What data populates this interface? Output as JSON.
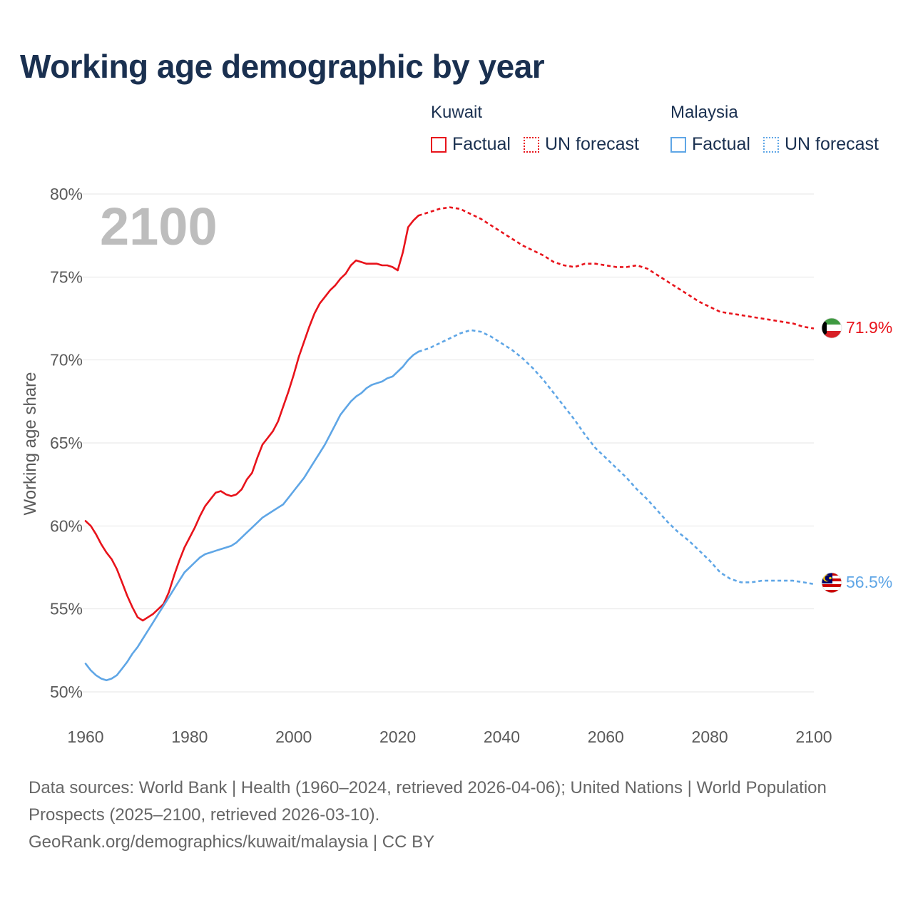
{
  "title": "Working age demographic by year",
  "legend": {
    "groups": [
      {
        "country": "Kuwait",
        "color": "#e8131b",
        "factual_label": "Factual",
        "forecast_label": "UN forecast"
      },
      {
        "country": "Malaysia",
        "color": "#5fa6e6",
        "factual_label": "Factual",
        "forecast_label": "UN forecast"
      }
    ]
  },
  "year_watermark": "2100",
  "chart_data": {
    "type": "line",
    "title": "Working age demographic by year",
    "xlabel": "",
    "ylabel": "Working age share",
    "xlim": [
      1960,
      2100
    ],
    "ylim": [
      50,
      80
    ],
    "x_ticks": [
      1960,
      1980,
      2000,
      2020,
      2040,
      2060,
      2080,
      2100
    ],
    "y_ticks": [
      50,
      55,
      60,
      65,
      70,
      75,
      80
    ],
    "y_tick_labels": [
      "50%",
      "55%",
      "60%",
      "65%",
      "70%",
      "75%",
      "80%"
    ],
    "grid": true,
    "series": [
      {
        "name": "Kuwait",
        "color": "#e8131b",
        "end_label": "71.9%",
        "factual_range": "1960–2024",
        "forecast_range": "2024–2100",
        "factual": [
          [
            1960,
            60.3
          ],
          [
            1961,
            60.0
          ],
          [
            1962,
            59.5
          ],
          [
            1963,
            58.9
          ],
          [
            1964,
            58.4
          ],
          [
            1965,
            58.0
          ],
          [
            1966,
            57.4
          ],
          [
            1967,
            56.6
          ],
          [
            1968,
            55.8
          ],
          [
            1969,
            55.1
          ],
          [
            1970,
            54.5
          ],
          [
            1971,
            54.3
          ],
          [
            1972,
            54.5
          ],
          [
            1973,
            54.7
          ],
          [
            1974,
            55.0
          ],
          [
            1975,
            55.3
          ],
          [
            1976,
            56.0
          ],
          [
            1977,
            57.0
          ],
          [
            1978,
            57.9
          ],
          [
            1979,
            58.7
          ],
          [
            1980,
            59.3
          ],
          [
            1981,
            59.9
          ],
          [
            1982,
            60.6
          ],
          [
            1983,
            61.2
          ],
          [
            1984,
            61.6
          ],
          [
            1985,
            62.0
          ],
          [
            1986,
            62.1
          ],
          [
            1987,
            61.9
          ],
          [
            1988,
            61.8
          ],
          [
            1989,
            61.9
          ],
          [
            1990,
            62.2
          ],
          [
            1991,
            62.8
          ],
          [
            1992,
            63.2
          ],
          [
            1993,
            64.1
          ],
          [
            1994,
            64.9
          ],
          [
            1995,
            65.3
          ],
          [
            1996,
            65.7
          ],
          [
            1997,
            66.3
          ],
          [
            1998,
            67.2
          ],
          [
            1999,
            68.1
          ],
          [
            2000,
            69.1
          ],
          [
            2001,
            70.2
          ],
          [
            2002,
            71.1
          ],
          [
            2003,
            72.0
          ],
          [
            2004,
            72.8
          ],
          [
            2005,
            73.4
          ],
          [
            2006,
            73.8
          ],
          [
            2007,
            74.2
          ],
          [
            2008,
            74.5
          ],
          [
            2009,
            74.9
          ],
          [
            2010,
            75.2
          ],
          [
            2011,
            75.7
          ],
          [
            2012,
            76.0
          ],
          [
            2013,
            75.9
          ],
          [
            2014,
            75.8
          ],
          [
            2015,
            75.8
          ],
          [
            2016,
            75.8
          ],
          [
            2017,
            75.7
          ],
          [
            2018,
            75.7
          ],
          [
            2019,
            75.6
          ],
          [
            2020,
            75.4
          ],
          [
            2021,
            76.5
          ],
          [
            2022,
            78.0
          ],
          [
            2023,
            78.4
          ],
          [
            2024,
            78.7
          ]
        ],
        "forecast": [
          [
            2024,
            78.7
          ],
          [
            2026,
            78.9
          ],
          [
            2028,
            79.1
          ],
          [
            2030,
            79.2
          ],
          [
            2032,
            79.1
          ],
          [
            2034,
            78.8
          ],
          [
            2036,
            78.5
          ],
          [
            2038,
            78.1
          ],
          [
            2040,
            77.7
          ],
          [
            2042,
            77.3
          ],
          [
            2044,
            76.9
          ],
          [
            2046,
            76.6
          ],
          [
            2048,
            76.3
          ],
          [
            2050,
            75.9
          ],
          [
            2052,
            75.7
          ],
          [
            2054,
            75.6
          ],
          [
            2056,
            75.8
          ],
          [
            2058,
            75.8
          ],
          [
            2060,
            75.7
          ],
          [
            2062,
            75.6
          ],
          [
            2064,
            75.6
          ],
          [
            2066,
            75.7
          ],
          [
            2068,
            75.5
          ],
          [
            2070,
            75.1
          ],
          [
            2072,
            74.7
          ],
          [
            2074,
            74.3
          ],
          [
            2076,
            73.9
          ],
          [
            2078,
            73.5
          ],
          [
            2080,
            73.2
          ],
          [
            2082,
            72.9
          ],
          [
            2084,
            72.8
          ],
          [
            2086,
            72.7
          ],
          [
            2088,
            72.6
          ],
          [
            2090,
            72.5
          ],
          [
            2092,
            72.4
          ],
          [
            2094,
            72.3
          ],
          [
            2096,
            72.2
          ],
          [
            2098,
            72.0
          ],
          [
            2100,
            71.9
          ]
        ]
      },
      {
        "name": "Malaysia",
        "color": "#5fa6e6",
        "end_label": "56.5%",
        "factual_range": "1960–2024",
        "forecast_range": "2024–2100",
        "factual": [
          [
            1960,
            51.7
          ],
          [
            1961,
            51.3
          ],
          [
            1962,
            51.0
          ],
          [
            1963,
            50.8
          ],
          [
            1964,
            50.7
          ],
          [
            1965,
            50.8
          ],
          [
            1966,
            51.0
          ],
          [
            1967,
            51.4
          ],
          [
            1968,
            51.8
          ],
          [
            1969,
            52.3
          ],
          [
            1970,
            52.7
          ],
          [
            1971,
            53.2
          ],
          [
            1972,
            53.7
          ],
          [
            1973,
            54.2
          ],
          [
            1974,
            54.7
          ],
          [
            1975,
            55.2
          ],
          [
            1976,
            55.7
          ],
          [
            1977,
            56.2
          ],
          [
            1978,
            56.7
          ],
          [
            1979,
            57.2
          ],
          [
            1980,
            57.5
          ],
          [
            1981,
            57.8
          ],
          [
            1982,
            58.1
          ],
          [
            1983,
            58.3
          ],
          [
            1984,
            58.4
          ],
          [
            1985,
            58.5
          ],
          [
            1986,
            58.6
          ],
          [
            1987,
            58.7
          ],
          [
            1988,
            58.8
          ],
          [
            1989,
            59.0
          ],
          [
            1990,
            59.3
          ],
          [
            1991,
            59.6
          ],
          [
            1992,
            59.9
          ],
          [
            1993,
            60.2
          ],
          [
            1994,
            60.5
          ],
          [
            1995,
            60.7
          ],
          [
            1996,
            60.9
          ],
          [
            1997,
            61.1
          ],
          [
            1998,
            61.3
          ],
          [
            1999,
            61.7
          ],
          [
            2000,
            62.1
          ],
          [
            2001,
            62.5
          ],
          [
            2002,
            62.9
          ],
          [
            2003,
            63.4
          ],
          [
            2004,
            63.9
          ],
          [
            2005,
            64.4
          ],
          [
            2006,
            64.9
          ],
          [
            2007,
            65.5
          ],
          [
            2008,
            66.1
          ],
          [
            2009,
            66.7
          ],
          [
            2010,
            67.1
          ],
          [
            2011,
            67.5
          ],
          [
            2012,
            67.8
          ],
          [
            2013,
            68.0
          ],
          [
            2014,
            68.3
          ],
          [
            2015,
            68.5
          ],
          [
            2016,
            68.6
          ],
          [
            2017,
            68.7
          ],
          [
            2018,
            68.9
          ],
          [
            2019,
            69.0
          ],
          [
            2020,
            69.3
          ],
          [
            2021,
            69.6
          ],
          [
            2022,
            70.0
          ],
          [
            2023,
            70.3
          ],
          [
            2024,
            70.5
          ]
        ],
        "forecast": [
          [
            2024,
            70.5
          ],
          [
            2026,
            70.7
          ],
          [
            2028,
            71.0
          ],
          [
            2030,
            71.3
          ],
          [
            2032,
            71.6
          ],
          [
            2034,
            71.8
          ],
          [
            2036,
            71.7
          ],
          [
            2038,
            71.4
          ],
          [
            2040,
            71.0
          ],
          [
            2042,
            70.6
          ],
          [
            2044,
            70.1
          ],
          [
            2046,
            69.5
          ],
          [
            2048,
            68.8
          ],
          [
            2050,
            68.0
          ],
          [
            2052,
            67.2
          ],
          [
            2054,
            66.4
          ],
          [
            2056,
            65.5
          ],
          [
            2058,
            64.7
          ],
          [
            2060,
            64.1
          ],
          [
            2062,
            63.5
          ],
          [
            2064,
            62.9
          ],
          [
            2066,
            62.2
          ],
          [
            2068,
            61.6
          ],
          [
            2070,
            60.9
          ],
          [
            2072,
            60.2
          ],
          [
            2074,
            59.6
          ],
          [
            2076,
            59.1
          ],
          [
            2078,
            58.5
          ],
          [
            2080,
            57.9
          ],
          [
            2082,
            57.2
          ],
          [
            2084,
            56.8
          ],
          [
            2086,
            56.6
          ],
          [
            2088,
            56.6
          ],
          [
            2090,
            56.7
          ],
          [
            2092,
            56.7
          ],
          [
            2094,
            56.7
          ],
          [
            2096,
            56.7
          ],
          [
            2098,
            56.6
          ],
          [
            2100,
            56.5
          ]
        ]
      }
    ]
  },
  "footer": {
    "sources": "Data sources: World Bank | Health (1960–2024, retrieved 2026-04-06); United Nations | World Population Prospects (2025–2100, retrieved 2026-03-10).",
    "attribution": "GeoRank.org/demographics/kuwait/malaysia | CC BY"
  }
}
